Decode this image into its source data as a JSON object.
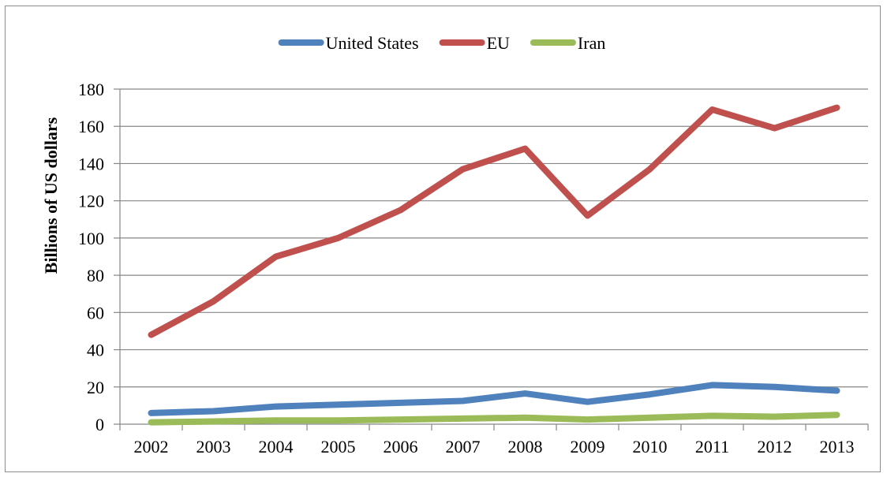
{
  "chart_data": {
    "type": "line",
    "title": "",
    "xlabel": "",
    "ylabel": "Billions of US dollars",
    "ylim": [
      0,
      180
    ],
    "yticks": [
      0,
      20,
      40,
      60,
      80,
      100,
      120,
      140,
      160,
      180
    ],
    "grid": true,
    "legend_position": "top",
    "categories": [
      "2002",
      "2003",
      "2004",
      "2005",
      "2006",
      "2007",
      "2008",
      "2009",
      "2010",
      "2011",
      "2012",
      "2013"
    ],
    "series": [
      {
        "name": "United States",
        "color": "#4f81bd",
        "values": [
          6,
          7,
          9.5,
          10.5,
          11.5,
          12.5,
          16.5,
          12,
          16,
          21,
          20,
          18
        ]
      },
      {
        "name": "EU",
        "color": "#c0504d",
        "values": [
          48,
          66,
          90,
          100,
          115,
          137,
          148,
          112,
          137,
          169,
          159,
          170
        ]
      },
      {
        "name": "Iran",
        "color": "#9bbb59",
        "values": [
          1,
          1.5,
          2,
          2,
          2.5,
          3,
          3.5,
          2.5,
          3.5,
          4.5,
          4,
          5
        ]
      }
    ]
  }
}
